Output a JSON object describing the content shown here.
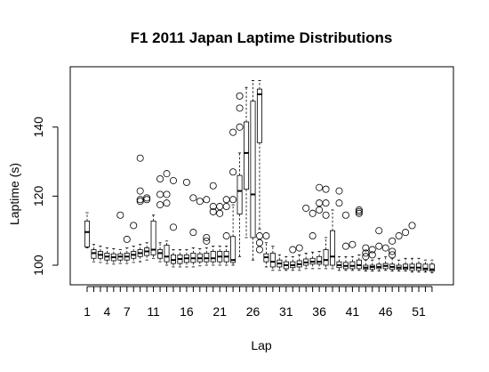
{
  "chart_data": {
    "type": "boxplot",
    "title": "F1 2011 Japan Laptime Distributions",
    "xlabel": "Lap",
    "ylabel": "Laptime (s)",
    "ylim": [
      95,
      155
    ],
    "xlim": [
      0,
      54
    ],
    "yticks": [
      100,
      120,
      140
    ],
    "xtick_labels": [
      "1",
      "4",
      "7",
      "11",
      "16",
      "21",
      "26",
      "31",
      "36",
      "41",
      "46",
      "51"
    ],
    "xtick_positions": [
      1,
      4,
      7,
      11,
      16,
      21,
      26,
      31,
      36,
      41,
      46,
      51
    ],
    "grid": false,
    "boxes": [
      {
        "lap": 1,
        "min": 105,
        "q1": 105.3,
        "median": 109.6,
        "q3": 112.8,
        "max": 115.2,
        "outliers": []
      },
      {
        "lap": 2,
        "min": 101.0,
        "q1": 102.0,
        "median": 103.5,
        "q3": 104.5,
        "max": 106.0,
        "outliers": []
      },
      {
        "lap": 3,
        "min": 100.8,
        "q1": 102.0,
        "median": 103.0,
        "q3": 104.0,
        "max": 105.5,
        "outliers": []
      },
      {
        "lap": 4,
        "min": 100.5,
        "q1": 101.5,
        "median": 102.5,
        "q3": 103.5,
        "max": 105.0,
        "outliers": []
      },
      {
        "lap": 5,
        "min": 100.3,
        "q1": 101.3,
        "median": 102.3,
        "q3": 103.3,
        "max": 104.8,
        "outliers": []
      },
      {
        "lap": 6,
        "min": 100.5,
        "q1": 101.5,
        "median": 102.5,
        "q3": 103.3,
        "max": 104.5,
        "outliers": [
          114.5
        ]
      },
      {
        "lap": 7,
        "min": 100.5,
        "q1": 101.5,
        "median": 102.5,
        "q3": 103.5,
        "max": 105.0,
        "outliers": [
          107.5
        ]
      },
      {
        "lap": 8,
        "min": 100.8,
        "q1": 102.0,
        "median": 103.0,
        "q3": 104.0,
        "max": 105.5,
        "outliers": [
          111.5
        ]
      },
      {
        "lap": 9,
        "min": 101.0,
        "q1": 102.5,
        "median": 103.5,
        "q3": 104.5,
        "max": 106.0,
        "outliers": [
          131.0,
          121.5,
          119.0,
          118.5
        ]
      },
      {
        "lap": 10,
        "min": 101.5,
        "q1": 102.8,
        "median": 104.0,
        "q3": 105.0,
        "max": 106.5,
        "outliers": [
          119.5,
          119.0
        ]
      },
      {
        "lap": 11,
        "min": 102.0,
        "q1": 103.0,
        "median": 104.5,
        "q3": 112.8,
        "max": 114.5,
        "outliers": []
      },
      {
        "lap": 12,
        "min": 101.0,
        "q1": 102.0,
        "median": 103.5,
        "q3": 104.5,
        "max": 106.5,
        "outliers": [
          125.0,
          120.5,
          117.5
        ]
      },
      {
        "lap": 13,
        "min": 100.0,
        "q1": 101.0,
        "median": 102.5,
        "q3": 105.8,
        "max": 107.0,
        "outliers": [
          126.5,
          120.5,
          118.0
        ]
      },
      {
        "lap": 14,
        "min": 99.5,
        "q1": 100.5,
        "median": 101.5,
        "q3": 103.0,
        "max": 104.5,
        "outliers": [
          124.5,
          111.0
        ]
      },
      {
        "lap": 15,
        "min": 99.5,
        "q1": 100.5,
        "median": 101.8,
        "q3": 103.0,
        "max": 104.5,
        "outliers": []
      },
      {
        "lap": 16,
        "min": 99.5,
        "q1": 100.8,
        "median": 102.0,
        "q3": 103.0,
        "max": 104.5,
        "outliers": [
          124.0
        ]
      },
      {
        "lap": 17,
        "min": 99.5,
        "q1": 100.8,
        "median": 102.0,
        "q3": 103.5,
        "max": 105.0,
        "outliers": [
          119.5,
          109.5
        ]
      },
      {
        "lap": 18,
        "min": 99.8,
        "q1": 101.0,
        "median": 102.0,
        "q3": 103.3,
        "max": 104.8,
        "outliers": [
          118.5
        ]
      },
      {
        "lap": 19,
        "min": 100.0,
        "q1": 101.0,
        "median": 102.0,
        "q3": 103.5,
        "max": 105.0,
        "outliers": [
          119.0,
          108.0,
          107.0
        ]
      },
      {
        "lap": 20,
        "min": 100.0,
        "q1": 101.0,
        "median": 102.0,
        "q3": 104.0,
        "max": 105.5,
        "outliers": [
          123.0,
          117.0,
          115.5
        ]
      },
      {
        "lap": 21,
        "min": 100.0,
        "q1": 101.0,
        "median": 102.5,
        "q3": 104.0,
        "max": 105.5,
        "outliers": [
          117.0,
          115.0
        ]
      },
      {
        "lap": 22,
        "min": 100.0,
        "q1": 101.0,
        "median": 102.5,
        "q3": 104.0,
        "max": 105.5,
        "outliers": [
          119.0,
          117.0,
          108.5
        ]
      },
      {
        "lap": 23,
        "min": 100.0,
        "q1": 100.8,
        "median": 101.5,
        "q3": 108.3,
        "max": 117.5,
        "outliers": [
          138.5,
          127.0,
          119.0
        ]
      },
      {
        "lap": 24,
        "min": 102.5,
        "q1": 114.8,
        "median": 121.5,
        "q3": 126.0,
        "max": 132.5,
        "outliers": [
          149.0,
          145.5,
          140.0
        ]
      },
      {
        "lap": 25,
        "min": 108.0,
        "q1": 122.0,
        "median": 132.5,
        "q3": 141.5,
        "max": 151.5,
        "outliers": []
      },
      {
        "lap": 26,
        "min": 101.5,
        "q1": 108.0,
        "median": 120.5,
        "q3": 147.5,
        "max": 153.5,
        "outliers": []
      },
      {
        "lap": 27,
        "min": 110.5,
        "q1": 135.5,
        "median": 149.5,
        "q3": 151.0,
        "max": 153.5,
        "outliers": [
          108.5,
          106.5,
          104.5
        ]
      },
      {
        "lap": 28,
        "min": 99.5,
        "q1": 101.0,
        "median": 102.3,
        "q3": 103.3,
        "max": 106.5,
        "outliers": [
          108.5
        ]
      },
      {
        "lap": 29,
        "min": 98.5,
        "q1": 99.5,
        "median": 101.0,
        "q3": 103.5,
        "max": 105.5,
        "outliers": []
      },
      {
        "lap": 30,
        "min": 98.5,
        "q1": 99.5,
        "median": 100.5,
        "q3": 101.5,
        "max": 103.0,
        "outliers": []
      },
      {
        "lap": 31,
        "min": 98.5,
        "q1": 99.0,
        "median": 100.0,
        "q3": 101.0,
        "max": 102.5,
        "outliers": []
      },
      {
        "lap": 32,
        "min": 98.5,
        "q1": 99.3,
        "median": 100.0,
        "q3": 101.0,
        "max": 102.5,
        "outliers": [
          104.5
        ]
      },
      {
        "lap": 33,
        "min": 98.5,
        "q1": 99.5,
        "median": 100.3,
        "q3": 101.3,
        "max": 103.0,
        "outliers": [
          105.0
        ]
      },
      {
        "lap": 34,
        "min": 99.0,
        "q1": 100.0,
        "median": 100.8,
        "q3": 101.8,
        "max": 103.5,
        "outliers": [
          116.5
        ]
      },
      {
        "lap": 35,
        "min": 99.0,
        "q1": 100.3,
        "median": 101.0,
        "q3": 102.0,
        "max": 103.8,
        "outliers": [
          115.0,
          108.5
        ]
      },
      {
        "lap": 36,
        "min": 99.0,
        "q1": 100.3,
        "median": 101.0,
        "q3": 102.5,
        "max": 104.0,
        "outliers": [
          122.5,
          118.0,
          116.0
        ]
      },
      {
        "lap": 37,
        "min": 99.0,
        "q1": 100.0,
        "median": 101.5,
        "q3": 104.5,
        "max": 108.0,
        "outliers": [
          122.0,
          118.0,
          114.5
        ]
      },
      {
        "lap": 38,
        "min": 99.0,
        "q1": 100.0,
        "median": 102.5,
        "q3": 110.0,
        "max": 116.0,
        "outliers": []
      },
      {
        "lap": 39,
        "min": 98.5,
        "q1": 99.3,
        "median": 100.0,
        "q3": 101.0,
        "max": 102.5,
        "outliers": [
          121.5,
          118.0
        ]
      },
      {
        "lap": 40,
        "min": 98.5,
        "q1": 99.0,
        "median": 99.8,
        "q3": 100.8,
        "max": 102.5,
        "outliers": [
          114.5,
          105.5
        ]
      },
      {
        "lap": 41,
        "min": 98.5,
        "q1": 99.0,
        "median": 99.8,
        "q3": 101.0,
        "max": 102.5,
        "outliers": [
          106.0
        ]
      },
      {
        "lap": 42,
        "min": 98.5,
        "q1": 99.0,
        "median": 100.0,
        "q3": 101.5,
        "max": 103.0,
        "outliers": [
          116.0,
          115.5,
          115.0
        ]
      },
      {
        "lap": 43,
        "min": 98.3,
        "q1": 98.8,
        "median": 99.3,
        "q3": 100.0,
        "max": 101.5,
        "outliers": [
          105.0,
          103.5,
          102.5
        ]
      },
      {
        "lap": 44,
        "min": 98.3,
        "q1": 98.8,
        "median": 99.5,
        "q3": 100.0,
        "max": 101.5,
        "outliers": [
          104.5,
          103.0
        ]
      },
      {
        "lap": 45,
        "min": 98.3,
        "q1": 99.0,
        "median": 99.5,
        "q3": 100.3,
        "max": 102.0,
        "outliers": [
          110.0,
          105.5
        ]
      },
      {
        "lap": 46,
        "min": 98.5,
        "q1": 99.0,
        "median": 99.8,
        "q3": 100.5,
        "max": 102.5,
        "outliers": [
          105.0
        ]
      },
      {
        "lap": 47,
        "min": 98.3,
        "q1": 98.8,
        "median": 99.5,
        "q3": 100.3,
        "max": 102.0,
        "outliers": [
          107.0,
          104.0,
          103.0
        ]
      },
      {
        "lap": 48,
        "min": 98.3,
        "q1": 98.8,
        "median": 99.3,
        "q3": 100.0,
        "max": 101.5,
        "outliers": [
          108.5
        ]
      },
      {
        "lap": 49,
        "min": 98.3,
        "q1": 98.8,
        "median": 99.3,
        "q3": 100.3,
        "max": 102.0,
        "outliers": [
          109.5
        ]
      },
      {
        "lap": 50,
        "min": 98.0,
        "q1": 98.5,
        "median": 99.3,
        "q3": 100.3,
        "max": 102.0,
        "outliers": [
          111.5
        ]
      },
      {
        "lap": 51,
        "min": 98.0,
        "q1": 98.5,
        "median": 99.3,
        "q3": 100.5,
        "max": 102.0,
        "outliers": []
      },
      {
        "lap": 52,
        "min": 98.0,
        "q1": 98.5,
        "median": 99.0,
        "q3": 100.3,
        "max": 101.5,
        "outliers": []
      },
      {
        "lap": 53,
        "min": 97.8,
        "q1": 98.3,
        "median": 98.8,
        "q3": 100.3,
        "max": 101.5,
        "outliers": []
      }
    ]
  }
}
